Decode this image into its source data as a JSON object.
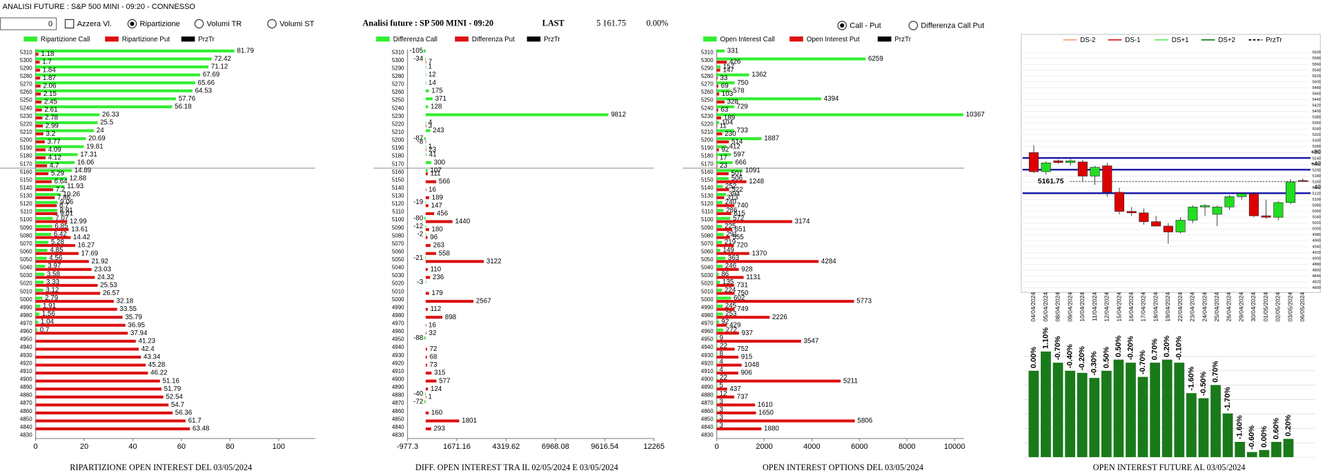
{
  "header": {
    "title": "ANALISI FUTURE : S&P 500 MINI - 09:20 - CONNESSO",
    "input": "0",
    "checkbox": "Azzera Vl.",
    "radios": [
      "Ripartizione",
      "Volumi TR",
      "Volumi ST"
    ],
    "info": {
      "name": "Analisi future : SP 500 MINI - 09:20",
      "last_label": "LAST",
      "last": "5 161.75",
      "change": "0.00%"
    },
    "radios2": [
      "Call - Put",
      "Differenza Call Put"
    ]
  },
  "chart_data": [
    {
      "type": "hbar",
      "title": "RIPARTIZIONE OPEN INTEREST DEL 03/05/2024",
      "price_name": "PrzTr",
      "price_color": "#000000",
      "categories": [
        5310,
        5300,
        5290,
        5280,
        5270,
        5260,
        5250,
        5240,
        5230,
        5220,
        5210,
        5200,
        5190,
        5180,
        5170,
        5160,
        5150,
        5140,
        5130,
        5120,
        5110,
        5100,
        5090,
        5080,
        5070,
        5060,
        5050,
        5040,
        5030,
        5020,
        5010,
        5000,
        4990,
        4980,
        4970,
        4960,
        4950,
        4940,
        4930,
        4920,
        4910,
        4900,
        4890,
        4880,
        4870,
        4860,
        4850,
        4840,
        4830
      ],
      "series": [
        {
          "name": "Ripartizione Call",
          "color": "#33ee33",
          "values": [
            81.79,
            72.42,
            71.12,
            67.69,
            65.66,
            64.53,
            57.76,
            56.18,
            26.33,
            25.5,
            24,
            20.69,
            19.81,
            17.31,
            16.06,
            14.89,
            12.88,
            11.93,
            10.26,
            9.06,
            8.91,
            7.07,
            6.85,
            6.42,
            5.28,
            4.85,
            4.56,
            3.97,
            3.58,
            3.33,
            3.12,
            2.79,
            1.91,
            1.56,
            1.04,
            0.7,
            null,
            null,
            null,
            null,
            null,
            null,
            null,
            null,
            null,
            null,
            null,
            null,
            null
          ]
        },
        {
          "name": "Ripartizione Put",
          "color": "#dd1111",
          "values": [
            1.18,
            1.7,
            1.84,
            1.87,
            2.06,
            2.15,
            2.45,
            2.61,
            2.78,
            2.99,
            3.2,
            3.77,
            4.09,
            4.12,
            4.7,
            5.29,
            6.64,
            7.2,
            7.86,
            8.7,
            9.01,
            12.99,
            13.61,
            14.42,
            16.27,
            17.69,
            21.92,
            23.03,
            24.32,
            25.53,
            26.57,
            32.18,
            33.55,
            35.79,
            36.95,
            37.94,
            41.23,
            42.4,
            43.34,
            45.28,
            46.22,
            51.16,
            51.79,
            52.54,
            54.7,
            56.36,
            61.7,
            63.48,
            null
          ]
        }
      ],
      "xlim": [
        0,
        115
      ],
      "xticks": [
        0,
        20,
        40,
        60,
        80,
        100
      ]
    },
    {
      "type": "hbar",
      "title": "DIFF. OPEN INTEREST TRA IL 02/05/2024 E 03/05/2024",
      "price_name": "PrzTr",
      "price_color": "#000000",
      "categories": [
        5310,
        5300,
        5290,
        5280,
        5270,
        5260,
        5250,
        5240,
        5230,
        5220,
        5210,
        5200,
        5190,
        5180,
        5170,
        5160,
        5150,
        5140,
        5130,
        5120,
        5110,
        5100,
        5090,
        5080,
        5070,
        5060,
        5050,
        5040,
        5030,
        5020,
        5010,
        5000,
        4990,
        4980,
        4970,
        4960,
        4950,
        4940,
        4930,
        4920,
        4910,
        4900,
        4890,
        4880,
        4870,
        4860,
        4850,
        4840,
        4830
      ],
      "series": [
        {
          "name": "Differenza Call",
          "color": "#33ee33",
          "values": [
            -105,
            -34,
            1,
            12,
            14,
            175,
            371,
            128,
            9812,
            4,
            243,
            -87,
            1,
            41,
            300,
            107,
            null,
            null,
            null,
            -19,
            null,
            -80,
            -12,
            -2,
            null,
            null,
            -21,
            null,
            null,
            -3,
            null,
            null,
            null,
            null,
            null,
            null,
            -88,
            null,
            null,
            null,
            null,
            null,
            null,
            -40,
            -72,
            null,
            null,
            null,
            null
          ]
        },
        {
          "name": "Differenza Put",
          "color": "#dd1111",
          "values": [
            null,
            7,
            null,
            null,
            null,
            null,
            null,
            null,
            null,
            3,
            null,
            -8,
            23,
            null,
            null,
            111,
            566,
            16,
            189,
            147,
            456,
            1440,
            180,
            96,
            263,
            558,
            3122,
            110,
            236,
            null,
            179,
            2567,
            112,
            898,
            16,
            32,
            null,
            72,
            68,
            73,
            315,
            577,
            124,
            1,
            null,
            160,
            1801,
            293,
            null
          ]
        }
      ],
      "xlim": [
        -977.3,
        12265
      ],
      "xticks": [
        -977.3,
        1671.16,
        4319.62,
        6968.08,
        9616.54,
        12265
      ]
    },
    {
      "type": "hbar",
      "title": "OPEN INTEREST OPTIONS DEL 03/05/2024",
      "price_name": "PrzTr",
      "price_color": "#000000",
      "categories": [
        5310,
        5300,
        5290,
        5280,
        5270,
        5260,
        5250,
        5240,
        5230,
        5220,
        5210,
        5200,
        5190,
        5180,
        5170,
        5160,
        5150,
        5140,
        5130,
        5120,
        5110,
        5100,
        5090,
        5080,
        5070,
        5060,
        5050,
        5040,
        5030,
        5020,
        5010,
        5000,
        4990,
        4980,
        4970,
        4960,
        4950,
        4940,
        4930,
        4920,
        4910,
        4900,
        4890,
        4880,
        4870,
        4860,
        4850,
        4840,
        4830
      ],
      "series": [
        {
          "name": "Open Interest Call",
          "color": "#33ee33",
          "values": [
            331,
            6259,
            157,
            1362,
            750,
            578,
            4394,
            729,
            10367,
            104,
            733,
            1887,
            412,
            597,
            666,
            1091,
            506,
            252,
            394,
            240,
            286,
            572,
            225,
            291,
            219,
            149,
            363,
            246,
            86,
            135,
            224,
            602,
            245,
            253,
            92,
            272,
            9,
            22,
            8,
            4,
            4,
            22,
            5,
            12,
            3,
            3,
            3,
            3,
            null
          ]
        },
        {
          "name": "Open Interest Put",
          "color": "#dd1111",
          "values": [
            null,
            426,
            147,
            33,
            69,
            103,
            328,
            63,
            189,
            11,
            230,
            514,
            92,
            17,
            23,
            501,
            1248,
            522,
            313,
            740,
            615,
            3174,
            651,
            555,
            720,
            1370,
            4284,
            928,
            1131,
            731,
            750,
            5773,
            749,
            2226,
            429,
            937,
            3547,
            752,
            915,
            1048,
            906,
            5211,
            437,
            737,
            1610,
            1650,
            5806,
            1880,
            null
          ]
        }
      ],
      "xlim": [
        0,
        10400
      ],
      "xticks": [
        0,
        2000,
        4000,
        6000,
        8000,
        10000
      ]
    },
    {
      "type": "candlestick",
      "price_name": "PrzTr",
      "last": 5161.75,
      "bands": [
        {
          "name": "DS-2",
          "color": "#f4a582"
        },
        {
          "name": "DS-1",
          "color": "#dd2222"
        },
        {
          "name": "DS+1",
          "color": "#66ee66"
        },
        {
          "name": "DS+2",
          "color": "#228822"
        }
      ],
      "levels": [
        {
          "value": 5241.75,
          "label": "+80"
        },
        {
          "value": 5201.75,
          "label": "+40"
        },
        {
          "value": 5121.75,
          "label": "-40"
        }
      ],
      "level_color": "#1a1aaa",
      "up_color": "#22dd22",
      "down_color": "#dd0000",
      "categories": [
        "04/04/2024",
        "05/04/2024",
        "08/04/2024",
        "09/04/2024",
        "10/04/2024",
        "11/04/2024",
        "12/04/2024",
        "15/04/2024",
        "16/04/2024",
        "17/04/2024",
        "18/04/2024",
        "19/04/2024",
        "22/04/2024",
        "23/04/2024",
        "24/04/2024",
        "25/04/2024",
        "26/04/2024",
        "29/04/2024",
        "30/04/2024",
        "01/05/2024",
        "02/05/2024",
        "03/05/2024",
        "06/05/2024"
      ],
      "open": [
        5260,
        5195,
        5232,
        5226,
        5228,
        5180,
        5215,
        5125,
        5060,
        5055,
        5025,
        5010,
        4990,
        5030,
        5075,
        5050,
        5075,
        5110,
        5120,
        5045,
        5040,
        5090,
        5165
      ],
      "high": [
        5285,
        5230,
        5236,
        5238,
        5235,
        5215,
        5225,
        5140,
        5075,
        5070,
        5045,
        5020,
        5040,
        5080,
        5085,
        5080,
        5115,
        5125,
        5125,
        5100,
        5095,
        5170,
        5172
      ],
      "low": [
        5190,
        5185,
        5222,
        5215,
        5160,
        5150,
        5110,
        5050,
        5045,
        5015,
        5010,
        4950,
        4985,
        5020,
        5045,
        5010,
        5065,
        5100,
        5040,
        5035,
        5030,
        5085,
        5160
      ],
      "close": [
        5195,
        5225,
        5226,
        5232,
        5180,
        5210,
        5125,
        5060,
        5055,
        5025,
        5010,
        4990,
        5030,
        5075,
        5080,
        5075,
        5110,
        5120,
        5045,
        5040,
        5090,
        5160,
        5162
      ],
      "ylim": [
        4800,
        5600
      ],
      "yticks": [
        4800,
        4820,
        4840,
        4860,
        4880,
        4900,
        4920,
        4940,
        4960,
        4980,
        5000,
        5020,
        5040,
        5060,
        5080,
        5100,
        5120,
        5140,
        5160,
        5180,
        5200,
        5220,
        5240,
        5260,
        5280,
        5300,
        5320,
        5340,
        5360,
        5380,
        5400,
        5420,
        5440,
        5460,
        5480,
        5500,
        5520,
        5540,
        5560,
        5580,
        5600
      ],
      "grid": true
    },
    {
      "type": "bar",
      "title": "OPEN INTEREST FUTURE AL 03/05/2024",
      "color": "#1a7a1a",
      "open_interest": [
        85,
        104,
        93,
        85,
        83,
        78,
        85,
        96,
        93,
        79,
        93,
        96,
        93,
        63,
        58,
        71,
        43,
        15,
        5,
        7,
        15,
        18
      ],
      "changes": [
        0,
        1.1,
        -0.7,
        -0.4,
        -0.2,
        -0.3,
        0.5,
        0.5,
        -0.2,
        -0.7,
        0.7,
        0.2,
        -0.1,
        -1.6,
        -0.5,
        0.7,
        -1.7,
        -1.6,
        -0.6,
        0,
        0.6,
        0.2
      ],
      "change_labels": [
        "0.00%",
        "1.10%",
        "-0.70%",
        "-0.40%",
        "-0.20%",
        "-0.30%",
        "0.50%",
        "0.50%",
        "-0.20%",
        "-0.70%",
        "0.70%",
        "0.20%",
        "-0.10%",
        "-1.60%",
        "-0.50%",
        "0.70%",
        "-1.70%",
        "-1.60%",
        "-0.60%",
        "0.00%",
        "0.60%",
        "0.20%"
      ],
      "ylim": [
        0,
        100
      ]
    }
  ]
}
